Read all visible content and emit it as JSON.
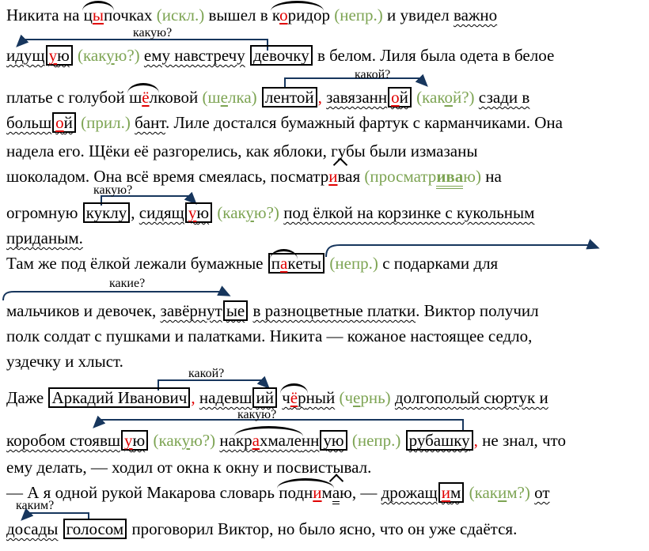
{
  "colors": {
    "green": "#7da453",
    "red": "#e00000",
    "arrow": "#17365d",
    "text": "#000000",
    "background": "#ffffff"
  },
  "arrows": [
    {
      "label": "какую?"
    },
    {
      "label": "какой?"
    },
    {
      "label": "какую?"
    },
    {
      "label": "какие?"
    },
    {
      "label": "какой?"
    },
    {
      "label": "какую?"
    },
    {
      "label": "каким?"
    }
  ],
  "lines": [
    {
      "runs": [
        {
          "t": "Никита на "
        },
        {
          "c": "arc",
          "r": [
            {
              "t": "ц"
            },
            {
              "c": "r",
              "t": "ы"
            },
            {
              "t": "п"
            }
          ]
        },
        {
          "t": "очках "
        },
        {
          "c": "g",
          "t": "(искл.)"
        },
        {
          "t": " вышел в "
        },
        {
          "c": "arc",
          "r": [
            {
              "t": "к"
            },
            {
              "c": "r",
              "t": "о"
            },
            {
              "t": "ридо"
            }
          ]
        },
        {
          "t": "р "
        },
        {
          "c": "g",
          "t": "(непр.)"
        },
        {
          "t": " и увидел "
        },
        {
          "c": "w",
          "t": "важно"
        }
      ]
    },
    {
      "runs": [
        {
          "c": "w",
          "t": "идущ"
        },
        {
          "c": "bx",
          "r": [
            {
              "c": "w",
              "r": [
                {
                  "c": "r",
                  "t": "у"
                },
                {
                  "t": "ю"
                }
              ]
            }
          ]
        },
        {
          "t": " "
        },
        {
          "c": "g",
          "t": "(как"
        },
        {
          "c": "gu",
          "t": "у"
        },
        {
          "c": "g",
          "t": "ю?)"
        },
        {
          "t": " "
        },
        {
          "c": "w",
          "t": "ему навстречу"
        },
        {
          "t": " "
        },
        {
          "c": "bx",
          "r": [
            {
              "t": "девочку"
            }
          ]
        },
        {
          "t": " в белом. Лиля была одета в белое"
        }
      ]
    },
    {
      "runs": [
        {
          "t": "платье с голубой "
        },
        {
          "c": "arc",
          "r": [
            {
              "t": "ш"
            },
            {
              "c": "r",
              "t": "ё"
            },
            {
              "t": "л"
            }
          ]
        },
        {
          "t": "ковой "
        },
        {
          "c": "g",
          "t": "(ш"
        },
        {
          "c": "gu",
          "t": "е"
        },
        {
          "c": "g",
          "t": "лка)"
        },
        {
          "t": " "
        },
        {
          "c": "bx",
          "r": [
            {
              "t": "лентой"
            }
          ]
        },
        {
          "c": "rc",
          "t": ","
        },
        {
          "t": " "
        },
        {
          "c": "w",
          "t": "завязанн"
        },
        {
          "c": "bx",
          "r": [
            {
              "c": "w",
              "r": [
                {
                  "c": "r",
                  "t": "о"
                },
                {
                  "t": "й"
                }
              ]
            }
          ]
        },
        {
          "t": " "
        },
        {
          "c": "g",
          "t": "(как"
        },
        {
          "c": "gu",
          "t": "о"
        },
        {
          "c": "g",
          "t": "й?)"
        },
        {
          "t": " "
        },
        {
          "c": "w",
          "t": "сзади в"
        }
      ]
    },
    {
      "runs": [
        {
          "c": "w",
          "t": "больш"
        },
        {
          "c": "bx",
          "r": [
            {
              "c": "w",
              "r": [
                {
                  "c": "r",
                  "t": "о"
                },
                {
                  "t": "й"
                }
              ]
            }
          ]
        },
        {
          "t": " "
        },
        {
          "c": "g",
          "t": "(прил.)"
        },
        {
          "t": " "
        },
        {
          "c": "w",
          "t": "бант"
        },
        {
          "t": ". Лиле достался бумажный фартук с карманчиками. Она"
        }
      ]
    },
    {
      "runs": [
        {
          "t": "надела его. Щёки её разгорелись, как яблоки, губы были измазаны"
        }
      ]
    },
    {
      "runs": [
        {
          "t": "шоколадом. Она всё время смеялась, посматр"
        },
        {
          "c": "hat",
          "r": [
            {
              "c": "r",
              "t": "и"
            },
            {
              "t": "ва"
            }
          ]
        },
        {
          "t": "я "
        },
        {
          "c": "g",
          "t": "(просматр"
        },
        {
          "c": "gdu",
          "t": "ива"
        },
        {
          "c": "g",
          "t": "ю)"
        },
        {
          "t": " на"
        }
      ]
    },
    {
      "runs": [
        {
          "t": "огромную "
        },
        {
          "c": "bx",
          "r": [
            {
              "t": "куклу"
            }
          ]
        },
        {
          "t": ", "
        },
        {
          "c": "w",
          "t": "сидящ"
        },
        {
          "c": "bx",
          "r": [
            {
              "c": "w",
              "r": [
                {
                  "c": "r",
                  "t": "у"
                },
                {
                  "t": "ю"
                }
              ]
            }
          ]
        },
        {
          "t": " "
        },
        {
          "c": "g",
          "t": "(как"
        },
        {
          "c": "gu",
          "t": "у"
        },
        {
          "c": "g",
          "t": "ю?)"
        },
        {
          "t": " "
        },
        {
          "c": "w",
          "t": "под ёлкой на корзинке с кукольным"
        }
      ]
    },
    {
      "runs": [
        {
          "c": "w",
          "t": "приданым."
        }
      ]
    },
    {
      "runs": [
        {
          "t": "Там же под ёлкой лежали бумажные "
        },
        {
          "c": "bx",
          "r": [
            {
              "c": "arc",
              "r": [
                {
                  "t": "п"
                },
                {
                  "c": "r",
                  "t": "а"
                },
                {
                  "t": "к"
                }
              ]
            },
            {
              "t": "еты"
            }
          ]
        },
        {
          "t": " "
        },
        {
          "c": "g",
          "t": "(непр.)"
        },
        {
          "t": " с подарками для"
        }
      ]
    },
    {
      "runs": [
        {
          "t": "мальчиков и девочек, "
        },
        {
          "c": "w",
          "t": "завёрнут"
        },
        {
          "c": "bx",
          "r": [
            {
              "c": "w",
              "t": "ые"
            }
          ]
        },
        {
          "t": " "
        },
        {
          "c": "w",
          "t": "в разноцветные платки"
        },
        {
          "t": ". Виктор получил"
        }
      ]
    },
    {
      "runs": [
        {
          "t": "полк солдат с пушками и палатками. Никита — кожаное настоящее седло,"
        }
      ]
    },
    {
      "runs": [
        {
          "t": "уздечку и хлыст."
        }
      ]
    },
    {
      "runs": [
        {
          "t": "Даже "
        },
        {
          "c": "bx",
          "r": [
            {
              "t": "Аркадий Иванович"
            }
          ]
        },
        {
          "c": "rc",
          "t": ","
        },
        {
          "t": " "
        },
        {
          "c": "w",
          "t": "надевш"
        },
        {
          "c": "bx",
          "r": [
            {
              "c": "w",
              "t": "ий"
            }
          ]
        },
        {
          "t": " "
        },
        {
          "c": "arc w",
          "r": [
            {
              "t": "ч"
            },
            {
              "c": "r",
              "t": "ё"
            },
            {
              "t": "р"
            }
          ]
        },
        {
          "c": "w",
          "t": "ный"
        },
        {
          "t": " "
        },
        {
          "c": "g",
          "t": "(ч"
        },
        {
          "c": "gu",
          "t": "е"
        },
        {
          "c": "g",
          "t": "рнь)"
        },
        {
          "t": " "
        },
        {
          "c": "w",
          "t": "долгополый сюртук и"
        }
      ]
    },
    {
      "runs": [
        {
          "c": "w",
          "t": "коробом стоявш"
        },
        {
          "c": "bx",
          "r": [
            {
              "c": "w",
              "r": [
                {
                  "c": "r",
                  "t": "у"
                },
                {
                  "t": "ю"
                }
              ]
            }
          ]
        },
        {
          "t": " "
        },
        {
          "c": "g",
          "t": "(как"
        },
        {
          "c": "gu",
          "t": "у"
        },
        {
          "c": "g",
          "t": "ю?)"
        },
        {
          "t": " "
        },
        {
          "c": "w",
          "t": "на"
        },
        {
          "c": "arc w",
          "r": [
            {
              "t": "кр"
            },
            {
              "c": "r",
              "t": "а"
            },
            {
              "t": "хмале"
            }
          ]
        },
        {
          "c": "w",
          "t": "нн"
        },
        {
          "c": "bx",
          "r": [
            {
              "c": "w",
              "t": "ую"
            }
          ]
        },
        {
          "t": " "
        },
        {
          "c": "g",
          "t": "(непр.)"
        },
        {
          "t": " "
        },
        {
          "c": "bx",
          "r": [
            {
              "c": "w",
              "t": "рубашку"
            }
          ]
        },
        {
          "c": "rc",
          "t": ","
        },
        {
          "t": " не знал, что"
        }
      ]
    },
    {
      "runs": [
        {
          "t": "ему делать, — ходил от окна к окну и посвистывал."
        }
      ]
    },
    {
      "runs": [
        {
          "t": "— А я одной рукой Макарова словарь "
        },
        {
          "c": "arc",
          "r": [
            {
              "t": "подн"
            },
            {
              "c": "r",
              "t": "и"
            },
            {
              "t": "м"
            }
          ]
        },
        {
          "c": "hat du",
          "t": "а"
        },
        {
          "t": "ю, — "
        },
        {
          "c": "w",
          "t": "дрожащ"
        },
        {
          "c": "bx",
          "r": [
            {
              "c": "w",
              "r": [
                {
                  "c": "r",
                  "t": "и"
                },
                {
                  "t": "м"
                }
              ]
            }
          ]
        },
        {
          "t": " "
        },
        {
          "c": "g",
          "t": "(как"
        },
        {
          "c": "gu",
          "t": "и"
        },
        {
          "c": "g",
          "t": "м?)"
        },
        {
          "t": " "
        },
        {
          "c": "w",
          "t": "от"
        }
      ]
    },
    {
      "runs": [
        {
          "c": "w",
          "t": "досады"
        },
        {
          "t": " "
        },
        {
          "c": "bx",
          "r": [
            {
              "t": "голосом"
            }
          ]
        },
        {
          "t": " проговорил Виктор, но было ясно, что он уже сдаётся."
        }
      ]
    }
  ]
}
